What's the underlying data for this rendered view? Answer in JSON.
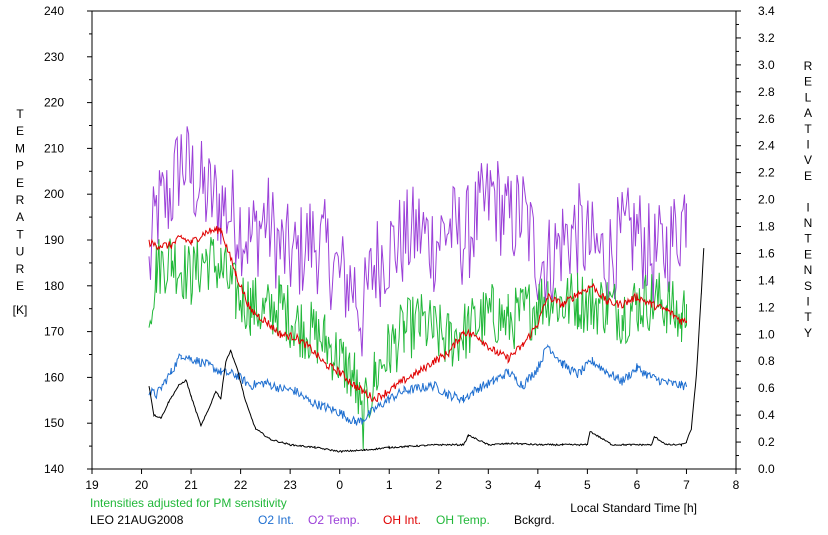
{
  "chart_data": {
    "type": "line",
    "title": "",
    "xlabel": "Local Standard Time [h]",
    "ylabel_left": "TEMPERATURE [K]",
    "ylabel_left_letters": [
      "T",
      "E",
      "M",
      "P",
      "E",
      "R",
      "A",
      "T",
      "U",
      "R",
      "E"
    ],
    "ylabel_left_unit": "[K]",
    "ylabel_right_letters": [
      "R",
      "E",
      "L",
      "A",
      "T",
      "I",
      "V",
      "E",
      " ",
      "I",
      "N",
      "T",
      "E",
      "N",
      "S",
      "I",
      "T",
      "Y"
    ],
    "note": "Intensities adjusted for PM sensitivity",
    "station": "LEO 21AUG2008",
    "x_ticks": [
      "19",
      "20",
      "21",
      "22",
      "23",
      "0",
      "1",
      "2",
      "3",
      "4",
      "5",
      "6",
      "7",
      "8"
    ],
    "xlim": [
      19,
      32
    ],
    "y_left_ticks": [
      140,
      150,
      160,
      170,
      180,
      190,
      200,
      210,
      220,
      230,
      240
    ],
    "ylim_left": [
      140,
      240
    ],
    "y_right_ticks": [
      "0.0",
      "0.2",
      "0.4",
      "0.6",
      "0.8",
      "1.0",
      "1.2",
      "1.4",
      "1.6",
      "1.8",
      "2.0",
      "2.2",
      "2.4",
      "2.6",
      "2.8",
      "3.0",
      "3.2",
      "3.4"
    ],
    "ylim_right": [
      0,
      3.4
    ],
    "grid": false,
    "legend_position": "bottom",
    "series": [
      {
        "name": "O2 Int.",
        "axis": "right",
        "color": "#1f6fd0",
        "x": [
          20.15,
          20.3,
          20.6,
          20.8,
          21.0,
          21.3,
          21.6,
          21.9,
          22.2,
          22.5,
          22.8,
          23.1,
          23.4,
          23.7,
          24.0,
          24.3,
          24.45,
          24.7,
          25.0,
          25.3,
          25.6,
          25.9,
          26.2,
          26.5,
          26.8,
          27.1,
          27.4,
          27.7,
          28.0,
          28.2,
          28.5,
          28.8,
          29.1,
          29.4,
          29.7,
          30.0,
          30.3,
          30.6,
          30.9,
          31.0
        ],
        "y": [
          0.58,
          0.55,
          0.72,
          0.85,
          0.82,
          0.78,
          0.72,
          0.7,
          0.62,
          0.64,
          0.6,
          0.58,
          0.5,
          0.46,
          0.42,
          0.35,
          0.36,
          0.44,
          0.52,
          0.58,
          0.6,
          0.62,
          0.55,
          0.52,
          0.6,
          0.65,
          0.72,
          0.62,
          0.75,
          0.92,
          0.78,
          0.7,
          0.8,
          0.72,
          0.65,
          0.75,
          0.68,
          0.64,
          0.62,
          0.62
        ]
      },
      {
        "name": "O2 Temp.",
        "axis": "left",
        "color": "#9b40d8",
        "x": [
          20.15,
          20.3,
          20.6,
          20.8,
          21.0,
          21.3,
          21.6,
          21.9,
          22.2,
          22.5,
          22.8,
          23.1,
          23.4,
          23.7,
          24.0,
          24.3,
          24.45,
          24.7,
          25.0,
          25.3,
          25.6,
          25.9,
          26.2,
          26.5,
          26.8,
          27.1,
          27.4,
          27.7,
          28.0,
          28.2,
          28.5,
          28.8,
          29.1,
          29.4,
          29.7,
          30.0,
          30.3,
          30.6,
          30.9,
          31.0
        ],
        "y": [
          183,
          196,
          200,
          208,
          204,
          200,
          198,
          195,
          190,
          195,
          188,
          186,
          190,
          188,
          182,
          180,
          173,
          185,
          188,
          190,
          192,
          189,
          193,
          190,
          195,
          200,
          194,
          196,
          186,
          185,
          190,
          192,
          188,
          186,
          190,
          192,
          186,
          188,
          194,
          198
        ]
      },
      {
        "name": "OH Int.",
        "axis": "right",
        "color": "#e00000",
        "x": [
          20.15,
          20.3,
          20.6,
          20.8,
          21.0,
          21.3,
          21.6,
          21.9,
          22.2,
          22.5,
          22.8,
          23.1,
          23.4,
          23.7,
          24.0,
          24.3,
          24.45,
          24.7,
          25.0,
          25.3,
          25.6,
          25.9,
          26.2,
          26.5,
          26.8,
          27.1,
          27.4,
          27.7,
          28.0,
          28.2,
          28.5,
          28.8,
          29.1,
          29.4,
          29.7,
          30.0,
          30.3,
          30.6,
          30.9,
          31.0
        ],
        "y": [
          1.68,
          1.66,
          1.66,
          1.72,
          1.68,
          1.76,
          1.78,
          1.45,
          1.18,
          1.1,
          1.0,
          0.98,
          0.9,
          0.78,
          0.72,
          0.62,
          0.58,
          0.52,
          0.58,
          0.66,
          0.72,
          0.8,
          0.86,
          1.02,
          0.98,
          0.88,
          0.82,
          0.92,
          1.08,
          1.28,
          1.22,
          1.3,
          1.36,
          1.24,
          1.22,
          1.28,
          1.22,
          1.18,
          1.1,
          1.1
        ]
      },
      {
        "name": "OH Temp.",
        "axis": "left",
        "color": "#22b83a",
        "x": [
          20.15,
          20.3,
          20.6,
          20.8,
          21.0,
          21.3,
          21.6,
          21.9,
          22.2,
          22.5,
          22.8,
          23.1,
          23.4,
          23.7,
          24.0,
          24.3,
          24.45,
          24.7,
          25.0,
          25.3,
          25.6,
          25.9,
          26.2,
          26.5,
          26.8,
          27.1,
          27.4,
          27.7,
          28.0,
          28.2,
          28.5,
          28.8,
          29.1,
          29.4,
          29.7,
          30.0,
          30.3,
          30.6,
          30.9,
          31.0
        ],
        "y": [
          174,
          184,
          186,
          184,
          182,
          186,
          184,
          178,
          176,
          174,
          176,
          172,
          170,
          168,
          164,
          160,
          150,
          160,
          166,
          170,
          172,
          170,
          168,
          170,
          172,
          174,
          172,
          174,
          176,
          178,
          176,
          177,
          176,
          176,
          174,
          176,
          177,
          176,
          172,
          176
        ]
      },
      {
        "name": "Bckgrd.",
        "axis": "right",
        "color": "#000000",
        "x": [
          20.15,
          20.25,
          20.4,
          20.55,
          20.75,
          20.9,
          21.0,
          21.2,
          21.35,
          21.5,
          21.6,
          21.7,
          21.8,
          21.95,
          22.1,
          22.3,
          22.6,
          23.0,
          23.5,
          24.0,
          24.5,
          25.0,
          25.5,
          26.0,
          26.5,
          26.6,
          27.0,
          27.5,
          28.0,
          28.5,
          29.0,
          29.05,
          29.5,
          30.0,
          30.3,
          30.35,
          30.6,
          30.9,
          31.0,
          31.1,
          31.2,
          31.3,
          31.35
        ],
        "y": [
          0.62,
          0.4,
          0.38,
          0.5,
          0.62,
          0.66,
          0.54,
          0.32,
          0.44,
          0.58,
          0.52,
          0.8,
          0.88,
          0.72,
          0.5,
          0.3,
          0.22,
          0.18,
          0.16,
          0.13,
          0.14,
          0.16,
          0.17,
          0.18,
          0.18,
          0.25,
          0.18,
          0.19,
          0.18,
          0.18,
          0.18,
          0.28,
          0.18,
          0.18,
          0.18,
          0.24,
          0.18,
          0.18,
          0.2,
          0.3,
          0.7,
          1.3,
          1.64
        ]
      }
    ]
  }
}
